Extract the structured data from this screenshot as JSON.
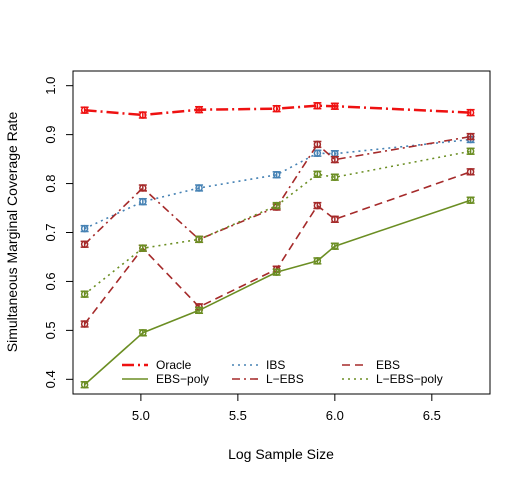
{
  "chart_data": {
    "type": "line",
    "xlabel": "Log Sample Size",
    "ylabel": "Simultaneous Marginal Coverage Rate",
    "xlim": [
      4.65,
      6.8
    ],
    "ylim": [
      0.37,
      1.03
    ],
    "xticks": [
      5.0,
      5.5,
      6.0,
      6.5
    ],
    "xtick_labels": [
      "5.0",
      "5.5",
      "6.0",
      "6.5"
    ],
    "yticks": [
      0.4,
      0.5,
      0.6,
      0.7,
      0.8,
      0.9,
      1.0
    ],
    "ytick_labels": [
      "0.4",
      "0.5",
      "0.6",
      "0.7",
      "0.8",
      "0.9",
      "1.0"
    ],
    "grid": false,
    "legend_position": "bottom",
    "x": [
      4.71,
      5.01,
      5.3,
      5.7,
      5.91,
      6.0,
      6.7
    ],
    "series": [
      {
        "name": "Oracle",
        "color": "#ee1111",
        "dash": "12 4 2 4",
        "width": 2.5,
        "values": [
          0.95,
          0.94,
          0.951,
          0.953,
          0.959,
          0.958,
          0.945
        ]
      },
      {
        "name": "IBS",
        "color": "#4682b4",
        "dash": "2 4",
        "width": 1.6,
        "values": [
          0.708,
          0.763,
          0.791,
          0.818,
          0.862,
          0.861,
          0.89
        ]
      },
      {
        "name": "EBS",
        "color": "#a52a2a",
        "dash": "8 5",
        "width": 1.6,
        "values": [
          0.513,
          0.668,
          0.548,
          0.625,
          0.755,
          0.727,
          0.824
        ]
      },
      {
        "name": "EBS−poly",
        "color": "#6b8e23",
        "dash": "",
        "width": 1.6,
        "values": [
          0.389,
          0.495,
          0.541,
          0.619,
          0.642,
          0.672,
          0.766
        ]
      },
      {
        "name": "L−EBS",
        "color": "#a52a2a",
        "dash": "8 4 2 4",
        "width": 1.6,
        "values": [
          0.676,
          0.791,
          0.686,
          0.752,
          0.88,
          0.849,
          0.896
        ]
      },
      {
        "name": "L−EBS−poly",
        "color": "#6b8e23",
        "dash": "2 4",
        "width": 1.6,
        "values": [
          0.574,
          0.668,
          0.686,
          0.755,
          0.819,
          0.813,
          0.866
        ]
      }
    ],
    "error_halfwidth": 0.006
  }
}
